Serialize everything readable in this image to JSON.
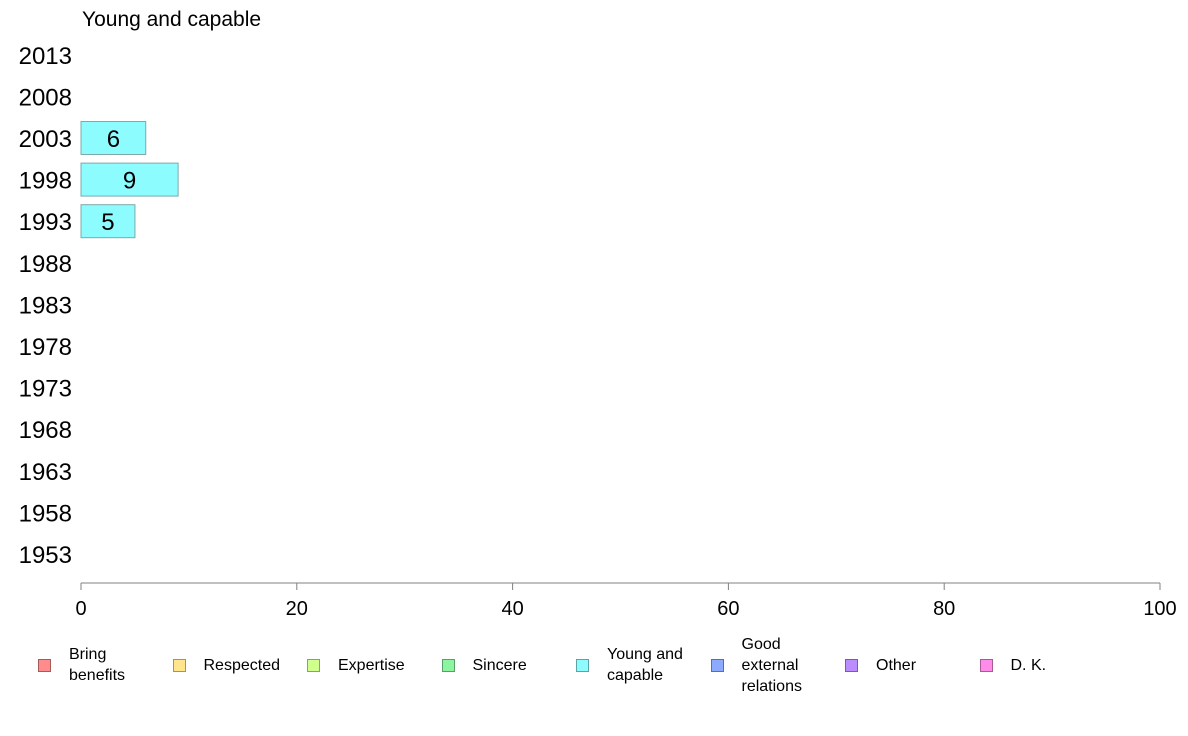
{
  "chart_data": {
    "type": "bar",
    "orientation": "horizontal",
    "title": "Young and capable",
    "categories": [
      "2013",
      "2008",
      "2003",
      "1998",
      "1993",
      "1988",
      "1983",
      "1978",
      "1973",
      "1968",
      "1963",
      "1958",
      "1953"
    ],
    "series": [
      {
        "name": "Young and capable",
        "color": "#8cfcff",
        "values": [
          null,
          null,
          6,
          9,
          5,
          null,
          null,
          null,
          null,
          null,
          null,
          null,
          null
        ]
      }
    ],
    "xlim": [
      0,
      100
    ],
    "xticks": [
      "0",
      "20",
      "40",
      "60",
      "80",
      "100"
    ],
    "grid": false,
    "legend_position": "bottom"
  },
  "legend": [
    {
      "label": "Bring\nbenefits",
      "color": "#ff8c8c"
    },
    {
      "label": "Respected",
      "color": "#ffe58c"
    },
    {
      "label": "Expertise",
      "color": "#cfff8c"
    },
    {
      "label": "Sincere",
      "color": "#8cf5a0"
    },
    {
      "label": "Young and\ncapable",
      "color": "#8cfcff"
    },
    {
      "label": "Good\nexternal\nrelations",
      "color": "#8caaff"
    },
    {
      "label": "Other",
      "color": "#bb8cff"
    },
    {
      "label": "D. K.",
      "color": "#ff8ce8"
    }
  ]
}
